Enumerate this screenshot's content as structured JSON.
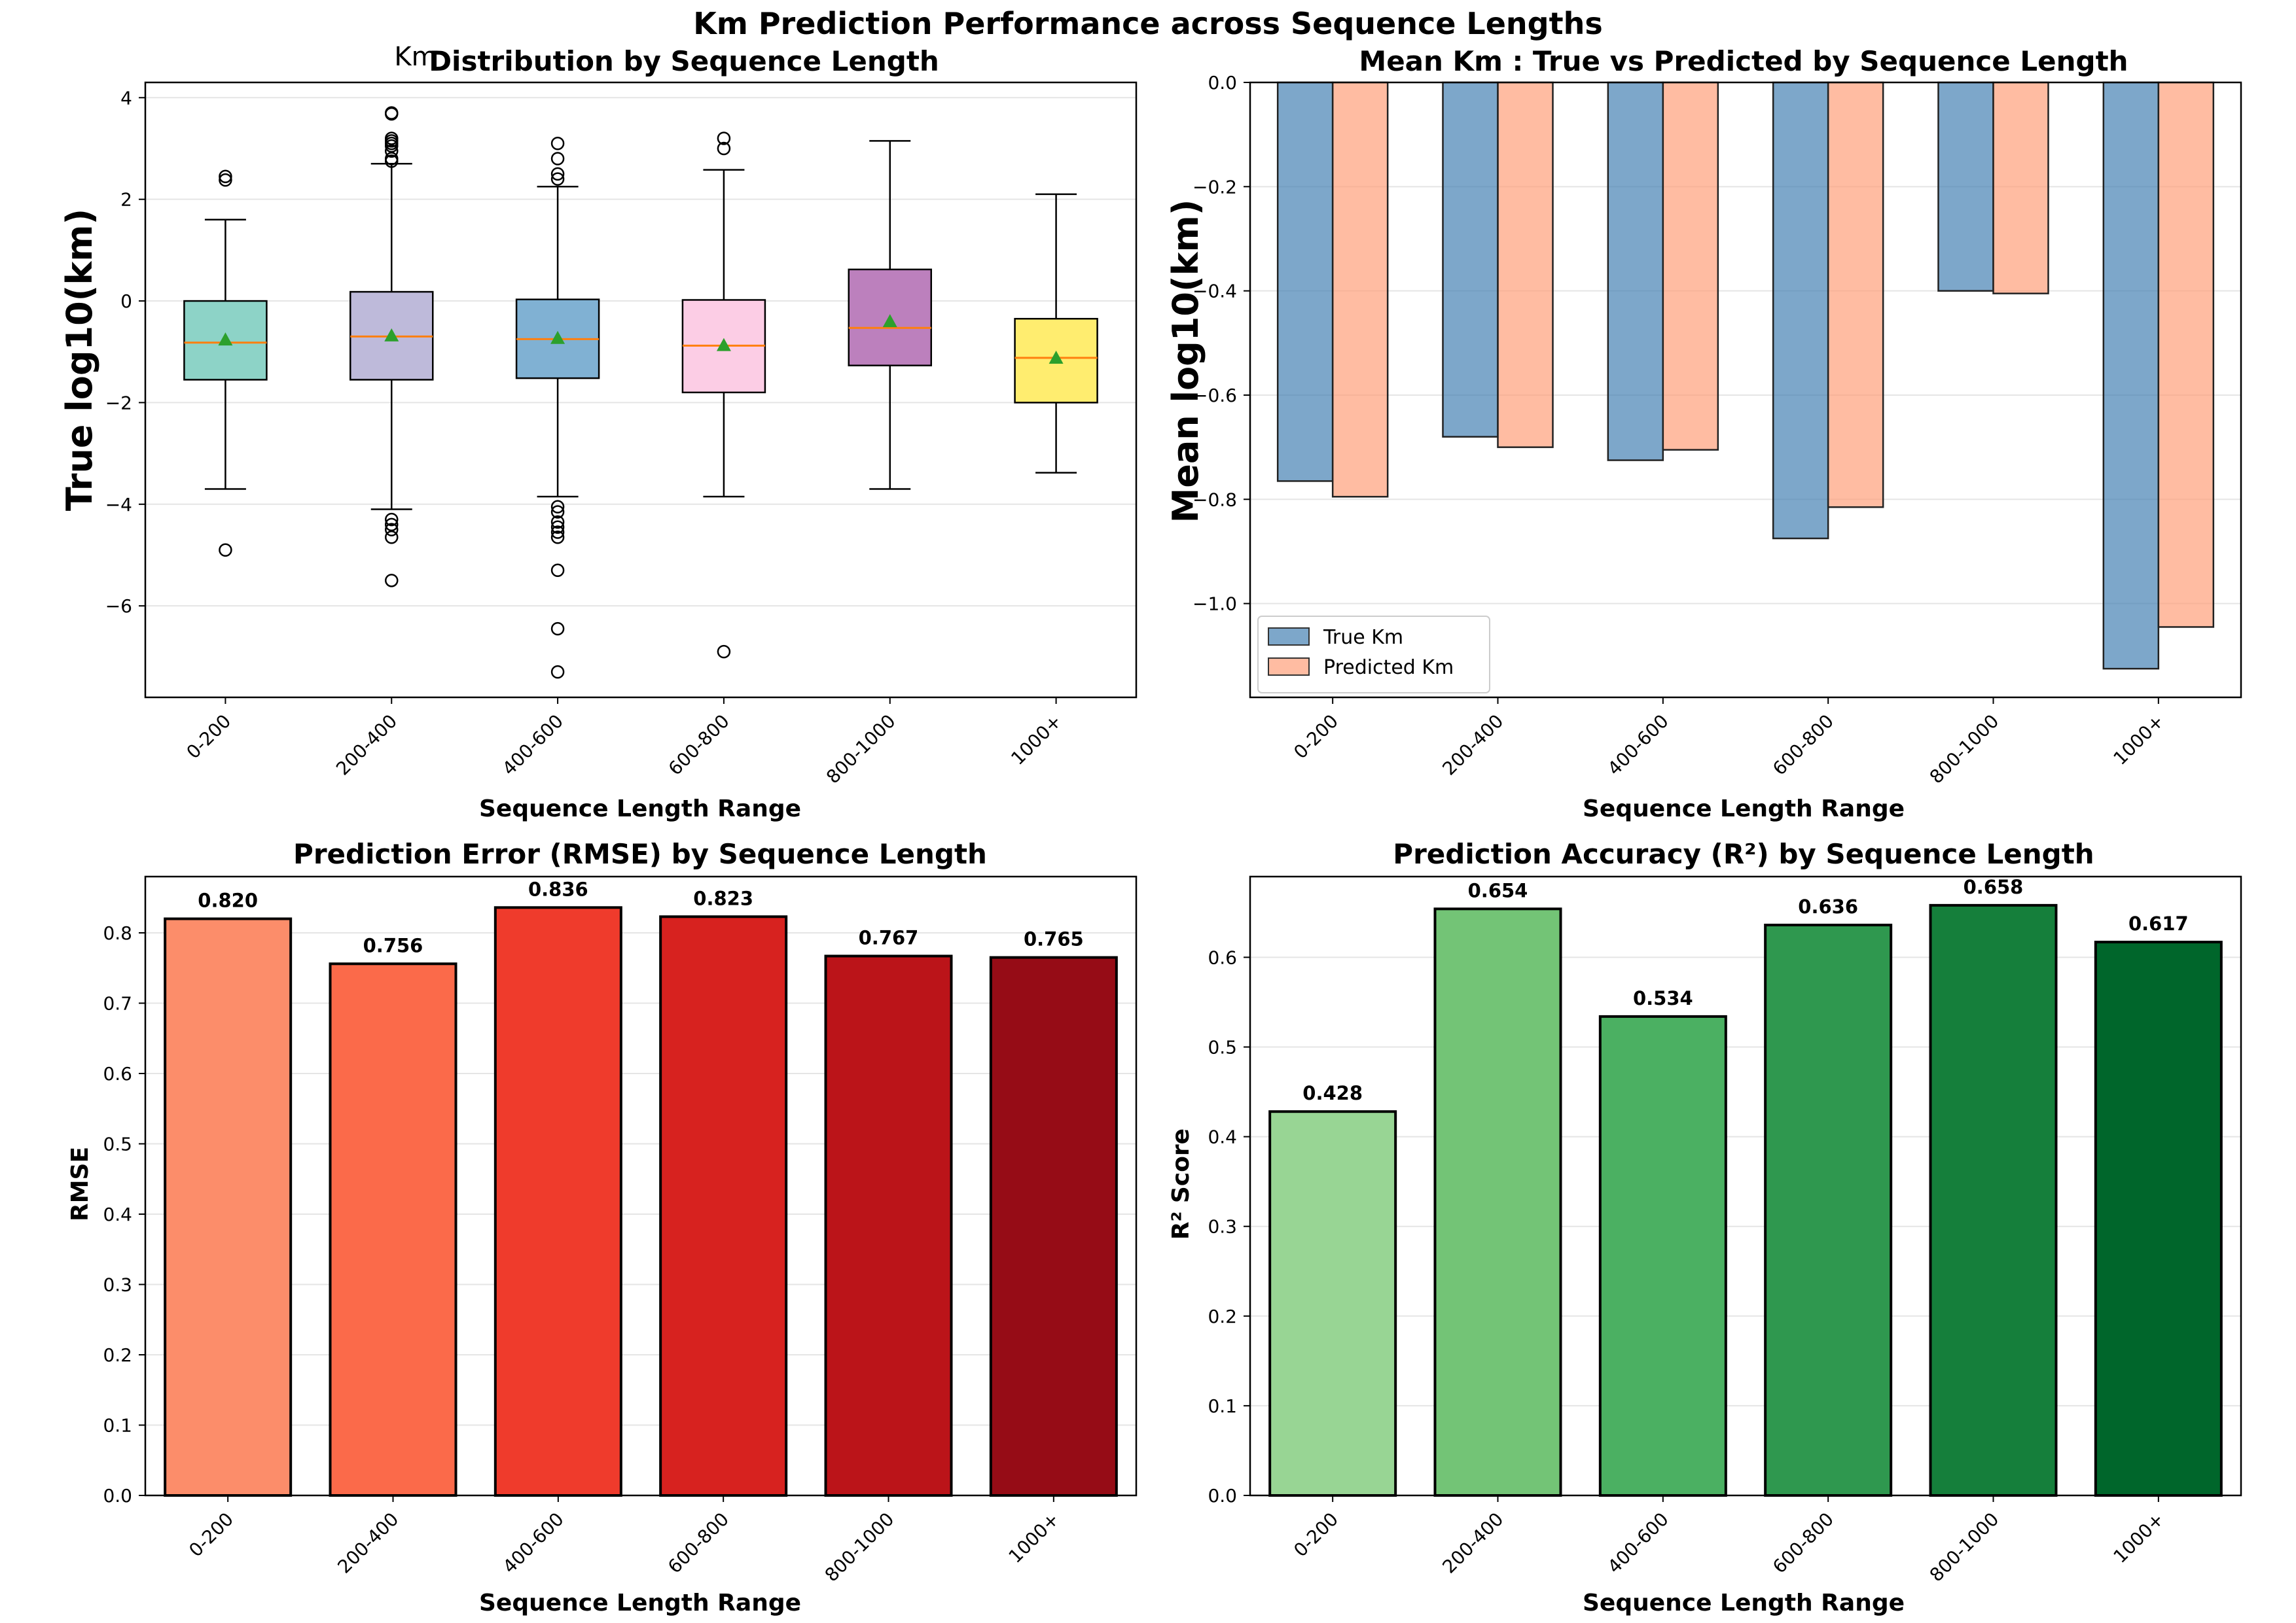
{
  "figure_title": "Km Prediction Performance across Sequence Lengths",
  "chart_data": [
    {
      "type": "box",
      "title_prefix": "Km",
      "title": "Distribution by Sequence Length",
      "xlabel": "Sequence Length Range",
      "ylabel": "True log10(km)",
      "ylim": [
        -7.8,
        4.3
      ],
      "yticks": [
        "4",
        "2",
        "0",
        "−2",
        "−4",
        "−6"
      ],
      "yticks_values": [
        4,
        2,
        0,
        -2,
        -4,
        -6
      ],
      "categories": [
        "0-200",
        "200-400",
        "400-600",
        "600-800",
        "800-1000",
        "1000+"
      ],
      "colors": [
        "#8dd3c7",
        "#bebada",
        "#80b1d3",
        "#fccde5",
        "#bc80bd",
        "#ffed6f"
      ],
      "grid": true,
      "boxes": [
        {
          "category": "0-200",
          "q1": -1.55,
          "median": -0.82,
          "q3": 0.0,
          "mean": -0.76,
          "whisker_low": -3.7,
          "whisker_high": 1.6,
          "outliers": [
            2.45,
            2.38,
            -4.9
          ]
        },
        {
          "category": "200-400",
          "q1": -1.55,
          "median": -0.7,
          "q3": 0.18,
          "mean": -0.68,
          "whisker_low": -4.1,
          "whisker_high": 2.7,
          "outliers": [
            3.7,
            3.68,
            3.2,
            3.15,
            3.1,
            3.05,
            2.95,
            2.8,
            2.75,
            -4.3,
            -4.4,
            -4.5,
            -4.65,
            -5.5
          ]
        },
        {
          "category": "400-600",
          "q1": -1.52,
          "median": -0.75,
          "q3": 0.03,
          "mean": -0.73,
          "whisker_low": -3.85,
          "whisker_high": 2.25,
          "outliers": [
            3.1,
            2.8,
            2.5,
            2.4,
            -4.05,
            -4.15,
            -4.35,
            -4.45,
            -4.55,
            -4.65,
            -5.3,
            -6.45,
            -7.3
          ]
        },
        {
          "category": "600-800",
          "q1": -1.8,
          "median": -0.88,
          "q3": 0.02,
          "mean": -0.87,
          "whisker_low": -3.85,
          "whisker_high": 2.58,
          "outliers": [
            3.2,
            3.0,
            -6.9
          ]
        },
        {
          "category": "800-1000",
          "q1": -1.27,
          "median": -0.53,
          "q3": 0.62,
          "mean": -0.4,
          "whisker_low": -3.7,
          "whisker_high": 3.15,
          "outliers": []
        },
        {
          "category": "1000+",
          "q1": -2.0,
          "median": -1.12,
          "q3": -0.35,
          "mean": -1.12,
          "whisker_low": -3.38,
          "whisker_high": 2.1,
          "outliers": []
        }
      ]
    },
    {
      "type": "bar",
      "title": "Mean Km : True vs Predicted by Sequence Length",
      "xlabel": "Sequence Length Range",
      "ylabel": "Mean log10(km)",
      "ylim": [
        -1.18,
        0.0
      ],
      "yticks": [
        "0.0",
        "−0.2",
        "−0.4",
        "−0.6",
        "−0.8",
        "−1.0"
      ],
      "yticks_values": [
        0,
        -0.2,
        -0.4,
        -0.6,
        -0.8,
        -1.0
      ],
      "categories": [
        "0-200",
        "200-400",
        "400-600",
        "600-800",
        "800-1000",
        "1000+"
      ],
      "legend_position": "lower-left",
      "grid": true,
      "series": [
        {
          "name": "True Km",
          "color": "#4682b4",
          "values": [
            -0.765,
            -0.68,
            -0.725,
            -0.875,
            -0.4,
            -1.125
          ]
        },
        {
          "name": "Predicted Km",
          "color": "#ffa07a",
          "values": [
            -0.795,
            -0.7,
            -0.705,
            -0.815,
            -0.405,
            -1.045
          ]
        }
      ]
    },
    {
      "type": "bar",
      "title": "Prediction Error (RMSE) by Sequence Length",
      "xlabel": "Sequence Length Range",
      "ylabel": "RMSE",
      "ylim": [
        0.0,
        0.88
      ],
      "yticks": [
        "0.0",
        "0.1",
        "0.2",
        "0.3",
        "0.4",
        "0.5",
        "0.6",
        "0.7",
        "0.8"
      ],
      "yticks_values": [
        0,
        0.1,
        0.2,
        0.3,
        0.4,
        0.5,
        0.6,
        0.7,
        0.8
      ],
      "categories": [
        "0-200",
        "200-400",
        "400-600",
        "600-800",
        "800-1000",
        "1000+"
      ],
      "values": [
        0.82,
        0.756,
        0.836,
        0.823,
        0.767,
        0.765
      ],
      "value_labels": [
        "0.820",
        "0.756",
        "0.836",
        "0.823",
        "0.767",
        "0.765"
      ],
      "colors": [
        "#fc8d6a",
        "#fb6a4a",
        "#ef3b2c",
        "#d7221f",
        "#bb1419",
        "#960c16"
      ],
      "grid": true
    },
    {
      "type": "bar",
      "title": "Prediction Accuracy (R²) by Sequence Length",
      "xlabel": "Sequence Length Range",
      "ylabel": "R² Score",
      "ylim": [
        0.0,
        0.69
      ],
      "yticks": [
        "0.0",
        "0.1",
        "0.2",
        "0.3",
        "0.4",
        "0.5",
        "0.6"
      ],
      "yticks_values": [
        0,
        0.1,
        0.2,
        0.3,
        0.4,
        0.5,
        0.6
      ],
      "categories": [
        "0-200",
        "200-400",
        "400-600",
        "600-800",
        "800-1000",
        "1000+"
      ],
      "values": [
        0.428,
        0.654,
        0.534,
        0.636,
        0.658,
        0.617
      ],
      "value_labels": [
        "0.428",
        "0.654",
        "0.534",
        "0.636",
        "0.658",
        "0.617"
      ],
      "colors": [
        "#98d594",
        "#73c476",
        "#4bb062",
        "#2f984f",
        "#157f3b",
        "#00662b"
      ],
      "grid": true
    }
  ]
}
